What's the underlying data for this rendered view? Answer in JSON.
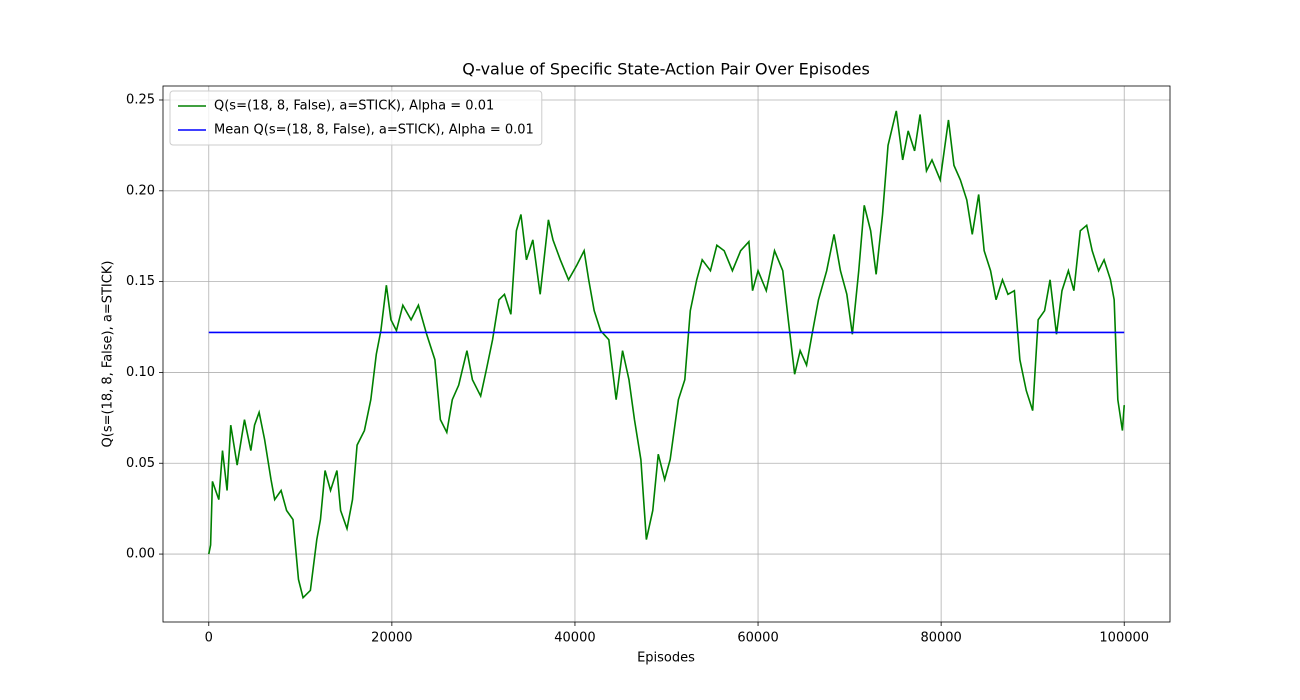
{
  "chart_data": {
    "type": "line",
    "title": "Q-value of Specific State-Action Pair Over Episodes",
    "x_label": "Episodes",
    "y_label": "Q(s=(18, 8, False), a=STICK)",
    "xlim": [
      -5000,
      105000
    ],
    "ylim": [
      -0.0374,
      0.2577
    ],
    "xticks": [
      0,
      20000,
      40000,
      60000,
      80000,
      100000
    ],
    "yticks": [
      {
        "value": 0,
        "label": "0.00"
      },
      0.05,
      {
        "value": 0.1,
        "label": "0.10"
      },
      0.15,
      {
        "value": 0.2,
        "label": "0.20"
      },
      0.25
    ],
    "grid": true,
    "legend": "upper left",
    "series": [
      {
        "name": "Q(s=(18, 8, False), a=STICK), Alpha = 0.01",
        "color": "#008000",
        "x": [
          0,
          200,
          400,
          1100,
          1500,
          2000,
          2400,
          3100,
          3900,
          4600,
          5000,
          5500,
          6100,
          6800,
          7200,
          7900,
          8500,
          9200,
          9800,
          10300,
          11100,
          11800,
          12200,
          12700,
          13300,
          14000,
          14400,
          15100,
          15700,
          16200,
          17000,
          17700,
          18300,
          18800,
          19400,
          19900,
          20500,
          21200,
          22100,
          22900,
          23800,
          24700,
          25300,
          26000,
          26600,
          27300,
          28200,
          28800,
          29700,
          30300,
          31000,
          31700,
          32300,
          33000,
          33600,
          34100,
          34700,
          35400,
          36200,
          37100,
          37600,
          38400,
          39300,
          40200,
          41000,
          41500,
          42100,
          42800,
          43700,
          44500,
          45200,
          45900,
          46500,
          47200,
          47800,
          48500,
          49100,
          49800,
          50400,
          51300,
          52000,
          52600,
          53300,
          53900,
          54800,
          55500,
          56300,
          57200,
          58100,
          59000,
          59400,
          60000,
          60900,
          61800,
          62700,
          63300,
          64000,
          64600,
          65300,
          65900,
          66600,
          67500,
          68300,
          69000,
          69700,
          70300,
          71000,
          71600,
          72300,
          72900,
          73600,
          74200,
          75100,
          75800,
          76400,
          77100,
          77700,
          78400,
          79000,
          79900,
          80800,
          81400,
          82100,
          82800,
          83400,
          84100,
          84700,
          85400,
          86000,
          86700,
          87300,
          88000,
          88600,
          89300,
          90000,
          90600,
          91300,
          91900,
          92600,
          93200,
          93900,
          94500,
          95200,
          95900,
          96500,
          97200,
          97800,
          98500,
          98900,
          99300,
          99800,
          100000
        ],
        "values": [
          0,
          0.005,
          0.04,
          0.03,
          0.057,
          0.035,
          0.071,
          0.049,
          0.074,
          0.057,
          0.071,
          0.078,
          0.063,
          0.041,
          0.03,
          0.035,
          0.024,
          0.019,
          -0.014,
          -0.024,
          -0.02,
          0.008,
          0.019,
          0.046,
          0.035,
          0.046,
          0.024,
          0.014,
          0.03,
          0.06,
          0.068,
          0.085,
          0.11,
          0.123,
          0.148,
          0.129,
          0.123,
          0.137,
          0.129,
          0.137,
          0.121,
          0.107,
          0.074,
          0.067,
          0.085,
          0.093,
          0.112,
          0.096,
          0.087,
          0.101,
          0.118,
          0.14,
          0.143,
          0.132,
          0.178,
          0.187,
          0.162,
          0.173,
          0.143,
          0.184,
          0.173,
          0.162,
          0.151,
          0.159,
          0.167,
          0.151,
          0.134,
          0.123,
          0.118,
          0.085,
          0.112,
          0.096,
          0.074,
          0.052,
          0.008,
          0.024,
          0.055,
          0.041,
          0.052,
          0.085,
          0.096,
          0.134,
          0.151,
          0.162,
          0.156,
          0.17,
          0.167,
          0.156,
          0.167,
          0.172,
          0.145,
          0.156,
          0.145,
          0.167,
          0.156,
          0.129,
          0.099,
          0.112,
          0.104,
          0.121,
          0.14,
          0.156,
          0.176,
          0.156,
          0.143,
          0.121,
          0.156,
          0.192,
          0.178,
          0.154,
          0.187,
          0.225,
          0.244,
          0.217,
          0.233,
          0.222,
          0.242,
          0.211,
          0.217,
          0.206,
          0.239,
          0.214,
          0.206,
          0.195,
          0.176,
          0.198,
          0.167,
          0.156,
          0.14,
          0.151,
          0.143,
          0.145,
          0.107,
          0.09,
          0.079,
          0.129,
          0.134,
          0.151,
          0.121,
          0.145,
          0.156,
          0.145,
          0.178,
          0.181,
          0.167,
          0.156,
          0.162,
          0.151,
          0.14,
          0.085,
          0.068,
          0.082
        ]
      },
      {
        "name": "Mean Q(s=(18, 8, False), a=STICK), Alpha = 0.01",
        "color": "#0000ff",
        "x": [
          0,
          100000
        ],
        "values": [
          0.122,
          0.122
        ]
      }
    ]
  }
}
